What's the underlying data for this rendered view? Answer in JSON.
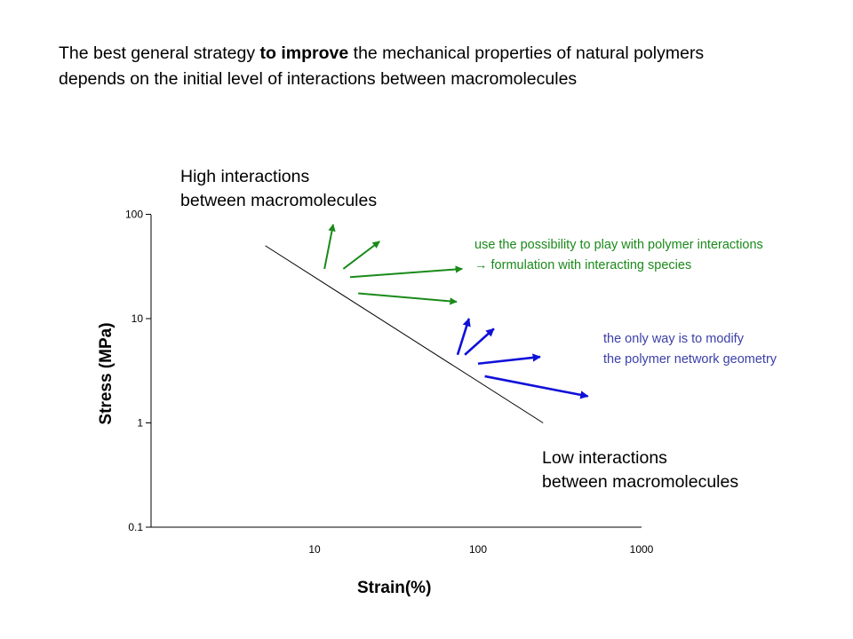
{
  "headline": {
    "part1": "The best general strategy ",
    "bold": "to improve",
    "part2": " the mechanical properties of natural polymers",
    "line2": "depends on the initial level of interactions between macromolecules"
  },
  "high_label": {
    "line1": "High interactions",
    "line2": "between macromolecules"
  },
  "low_label": {
    "line1": "Low interactions",
    "line2": "between macromolecules"
  },
  "green_note": {
    "line1": "use the possibility to play with polymer interactions",
    "line2": "→ formulation with interacting species"
  },
  "blue_note": {
    "line1": "the only way is to modify",
    "line2": "the polymer network geometry"
  },
  "colors": {
    "green": "#1a8a1a",
    "blue": "#1010d8",
    "note_blue": "#3b3fa8"
  },
  "chart_data": {
    "type": "line",
    "xlabel": "Strain(%)",
    "ylabel": "Stress (MPa)",
    "x_scale": "log",
    "y_scale": "log",
    "xlim": [
      1,
      1000
    ],
    "ylim": [
      0.1,
      100
    ],
    "x_ticks": [
      {
        "value": 10,
        "label": "10"
      },
      {
        "value": 100,
        "label": "100"
      },
      {
        "value": 1000,
        "label": "1000"
      }
    ],
    "y_ticks": [
      {
        "value": 0.1,
        "label": "0.1"
      },
      {
        "value": 1,
        "label": "1"
      },
      {
        "value": 10,
        "label": "10"
      },
      {
        "value": 100,
        "label": "100"
      }
    ],
    "trend_line": {
      "x": [
        5,
        250
      ],
      "y": [
        50,
        1
      ]
    },
    "arrow_groups": [
      {
        "group": "green",
        "color": "#1a8a1a",
        "arrows": [
          {
            "from": [
              11.5,
              30
            ],
            "to": [
              13,
              80
            ]
          },
          {
            "from": [
              15,
              30
            ],
            "to": [
              25,
              55
            ]
          },
          {
            "from": [
              16.5,
              25
            ],
            "to": [
              80,
              30
            ]
          },
          {
            "from": [
              18.5,
              17.5
            ],
            "to": [
              74,
              14.5
            ]
          }
        ]
      },
      {
        "group": "blue",
        "color": "#1010d8",
        "arrows": [
          {
            "from": [
              75,
              4.5
            ],
            "to": [
              88,
              10
            ]
          },
          {
            "from": [
              83,
              4.5
            ],
            "to": [
              125,
              8
            ]
          },
          {
            "from": [
              100,
              3.7
            ],
            "to": [
              240,
              4.3
            ]
          },
          {
            "from": [
              110,
              2.8
            ],
            "to": [
              470,
              1.8
            ]
          }
        ]
      }
    ]
  }
}
